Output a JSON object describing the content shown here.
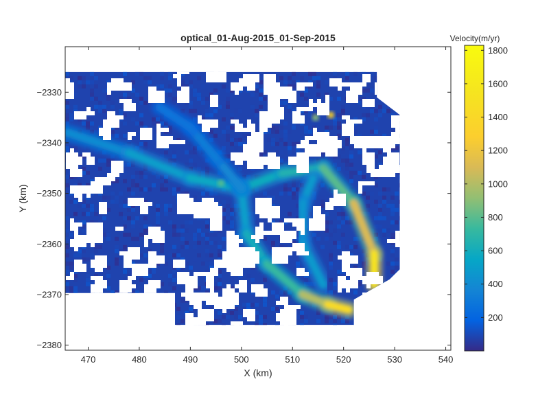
{
  "chart_data": {
    "type": "heatmap",
    "title": "optical_01-Aug-2015_01-Sep-2015",
    "xlabel": "X (km)",
    "ylabel": "Y (km)",
    "xlim": [
      465.5,
      541
    ],
    "ylim": [
      -2381,
      -2321
    ],
    "xticks": [
      470,
      480,
      490,
      500,
      510,
      520,
      530,
      540
    ],
    "yticks": [
      -2330,
      -2340,
      -2350,
      -2360,
      -2370,
      -2380
    ],
    "xtick_labels": [
      "470",
      "480",
      "490",
      "500",
      "510",
      "520",
      "530",
      "540"
    ],
    "ytick_labels": [
      "−2330",
      "−2340",
      "−2350",
      "−2360",
      "−2370",
      "−2380"
    ],
    "colorbar": {
      "label": "Velocity(m/yr)",
      "range": [
        0,
        1830
      ],
      "ticks": [
        200,
        400,
        600,
        800,
        1000,
        1200,
        1400,
        1600,
        1800
      ],
      "tick_labels": [
        "200",
        "400",
        "600",
        "800",
        "1000",
        "1200",
        "1400",
        "1600",
        "1800"
      ],
      "colormap": "parula"
    },
    "data_extent": {
      "x": [
        465.5,
        531
      ],
      "y": [
        -2376,
        -2326
      ]
    },
    "velocity_features": [
      {
        "feature": "main trunk glacier (west to east)",
        "path": [
          [
            466,
            -2338
          ],
          [
            478,
            -2342
          ],
          [
            490,
            -2347
          ],
          [
            500,
            -2349
          ],
          [
            508,
            -2346
          ],
          [
            516,
            -2345
          ],
          [
            522,
            -2352
          ],
          [
            526,
            -2362
          ],
          [
            526,
            -2368
          ]
        ],
        "velocity": [
          350,
          450,
          550,
          580,
          600,
          700,
          900,
          1300,
          1750
        ]
      },
      {
        "feature": "southern branch to terminus",
        "path": [
          [
            500,
            -2349
          ],
          [
            501,
            -2358
          ],
          [
            505,
            -2364
          ],
          [
            512,
            -2370
          ],
          [
            517,
            -2372
          ],
          [
            521,
            -2373
          ]
        ],
        "velocity": [
          450,
          550,
          650,
          800,
          1200,
          1650
        ]
      },
      {
        "feature": "central tributary",
        "path": [
          [
            514,
            -2347
          ],
          [
            512,
            -2352
          ],
          [
            512,
            -2360
          ],
          [
            516,
            -2368
          ]
        ],
        "velocity": [
          500,
          450,
          450,
          500
        ]
      },
      {
        "feature": "northern arm",
        "path": [
          [
            500,
            -2349
          ],
          [
            495,
            -2343
          ],
          [
            490,
            -2337
          ],
          [
            484,
            -2333
          ]
        ],
        "velocity": [
          400,
          350,
          300,
          250
        ]
      }
    ],
    "hotspots": [
      {
        "x": 517.5,
        "y": -2334.5,
        "velocity": 1350
      },
      {
        "x": 514.5,
        "y": -2335,
        "velocity": 900
      },
      {
        "x": 496,
        "y": -2348,
        "velocity": 800
      }
    ],
    "background_velocity": 80
  }
}
